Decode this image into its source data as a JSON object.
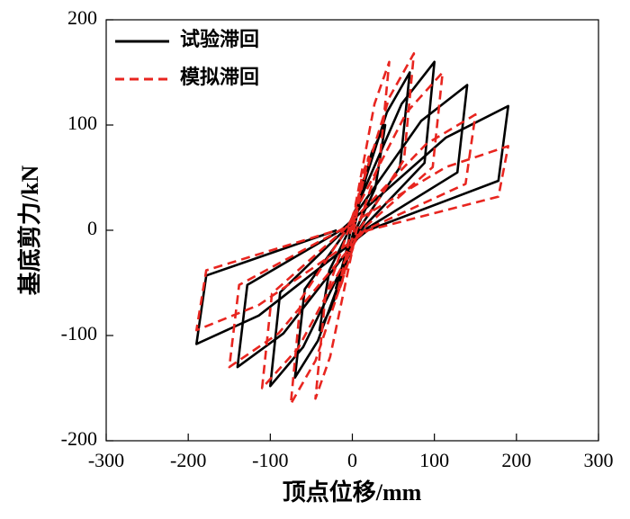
{
  "chart_data": {
    "type": "line",
    "xlabel": "顶点位移/mm",
    "ylabel": "基底剪力/kN",
    "xlim": [
      -300,
      300
    ],
    "xticks": [
      -300,
      -200,
      -100,
      0,
      100,
      200,
      300
    ],
    "ylim": [
      -200,
      200
    ],
    "yticks": [
      -200,
      -100,
      0,
      100,
      200
    ],
    "legend": "upper left",
    "series": [
      {
        "name": "试验滞回",
        "color": "#000000",
        "dash": false,
        "x": [
          0,
          12,
          20,
          8,
          2,
          -12,
          -20,
          -8,
          -2,
          24,
          40,
          28,
          4,
          -24,
          -40,
          -28,
          -4,
          42,
          70,
          58,
          7,
          -42,
          -70,
          -58,
          -7,
          60,
          100,
          88,
          10,
          -60,
          -100,
          -88,
          -10,
          84,
          140,
          128,
          14,
          -84,
          -140,
          -128,
          -14,
          114,
          190,
          178,
          19,
          -114,
          -190,
          -178,
          -19
        ],
        "values": [
          0,
          45,
          60,
          24,
          0,
          -41,
          -55,
          -22,
          0,
          75,
          100,
          40,
          0,
          -71,
          -95,
          -38,
          0,
          112,
          150,
          60,
          0,
          -105,
          -140,
          -56,
          0,
          120,
          160,
          64,
          0,
          -111,
          -148,
          -59,
          0,
          104,
          138,
          55,
          0,
          -98,
          -130,
          -52,
          0,
          88,
          118,
          47,
          0,
          -81,
          -108,
          -43,
          0
        ]
      },
      {
        "name": "模拟滞回",
        "color": "#e8251f",
        "dash": true,
        "x": [
          0,
          12,
          20,
          8,
          2,
          -12,
          -20,
          -8,
          -2,
          27,
          45,
          33,
          5,
          -27,
          -45,
          -33,
          -5,
          45,
          75,
          63,
          8,
          -45,
          -75,
          -63,
          -8,
          66,
          110,
          98,
          11,
          -66,
          -110,
          -98,
          -11,
          90,
          150,
          138,
          15,
          -90,
          -150,
          -138,
          -15,
          114,
          190,
          178,
          19,
          -114,
          -190,
          -178,
          -19
        ],
        "values": [
          0,
          52,
          70,
          28,
          0,
          -48,
          -65,
          -26,
          0,
          120,
          160,
          64,
          0,
          -120,
          -160,
          -64,
          0,
          126,
          168,
          67,
          0,
          -124,
          -165,
          -66,
          0,
          112,
          150,
          60,
          0,
          -112,
          -150,
          -60,
          0,
          82,
          110,
          44,
          0,
          -98,
          -130,
          -52,
          0,
          60,
          80,
          32,
          0,
          -71,
          -95,
          -38,
          0
        ]
      }
    ]
  }
}
